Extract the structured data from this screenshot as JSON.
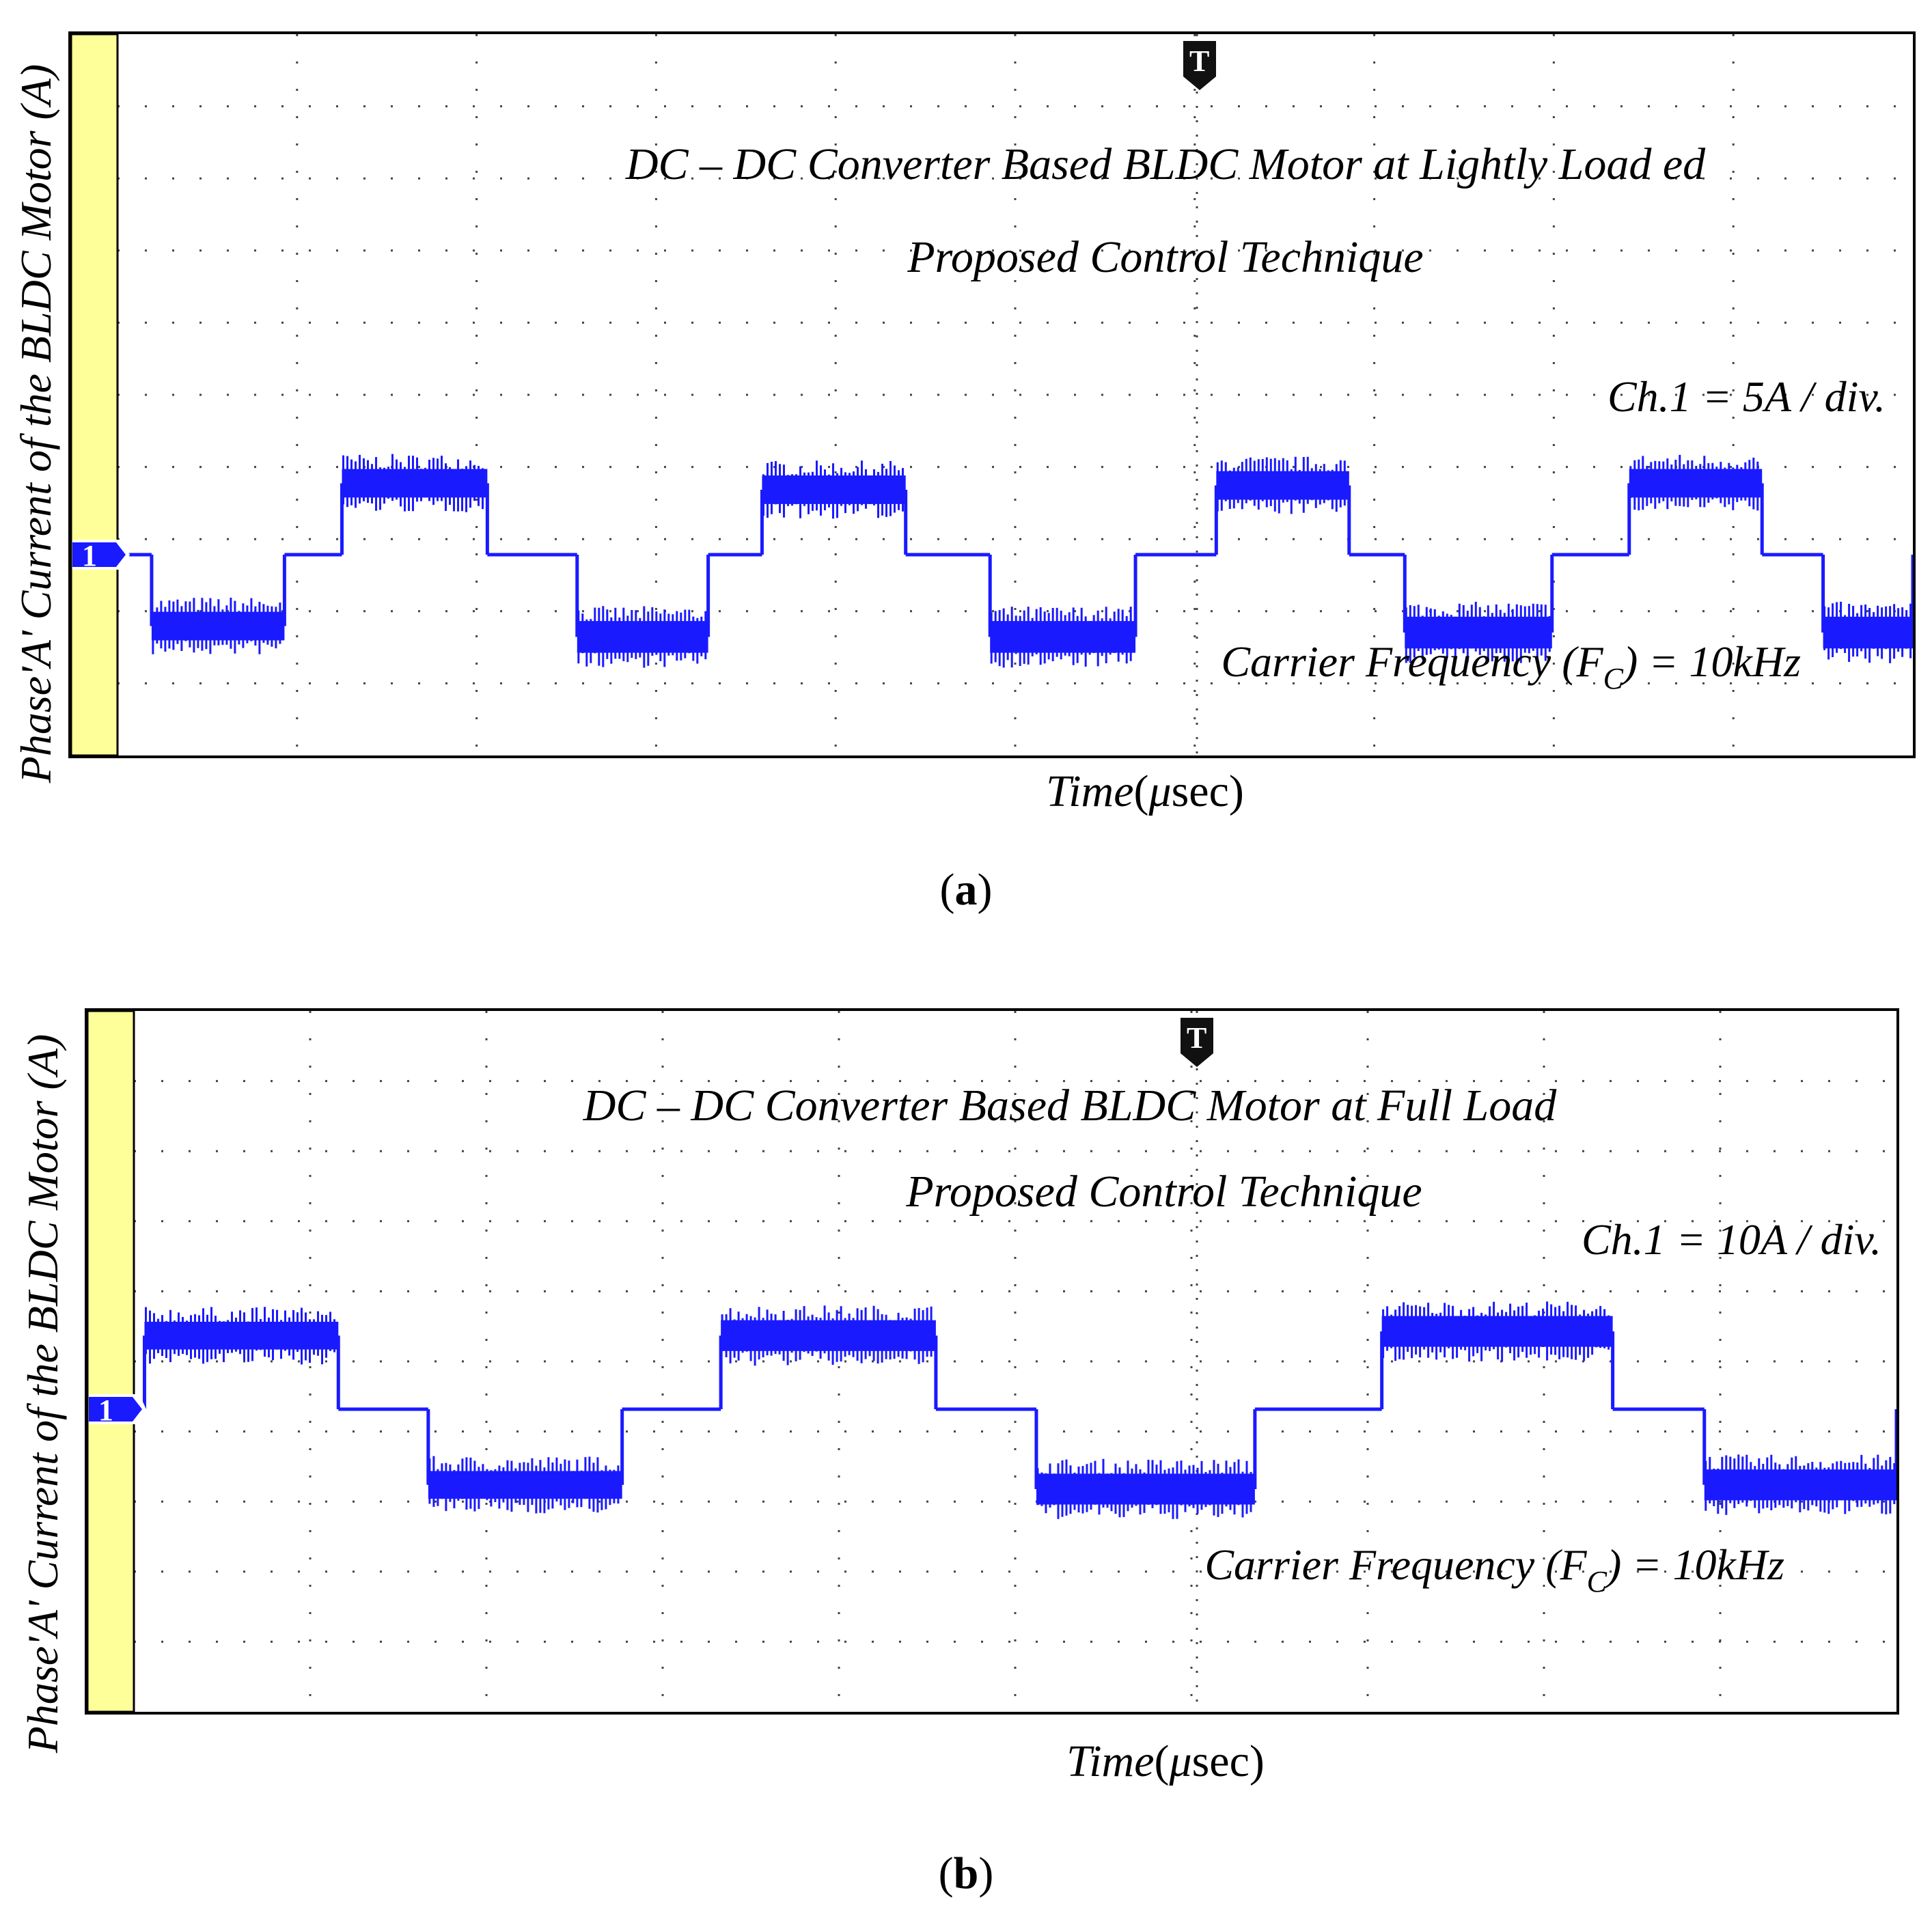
{
  "figure": {
    "panels": [
      {
        "caption_letter": "a",
        "ylabel": "Phase'A' Current of the BLDC Motor (A)",
        "xlabel_main": "Time",
        "xlabel_mu": "μ",
        "xlabel_unit": "sec",
        "title_line1": "DC – DC Converter Based BLDC Motor at Lightly Load ed",
        "title_line2": "Proposed Control Technique",
        "scale_label": "Ch.1 = 5A / div.",
        "carrier_prefix": "Carrier Frequency (F",
        "carrier_sub": "C",
        "carrier_suffix": ") = 10kHz",
        "channel_marker": "1",
        "trigger_marker": "T"
      },
      {
        "caption_letter": "b",
        "ylabel": "Phase'A' Current of the BLDC Motor (A)",
        "xlabel_main": "Time",
        "xlabel_mu": "μ",
        "xlabel_unit": "sec",
        "title_line1": "DC – DC Converter Based BLDC Motor at Full Load",
        "title_line2": "Proposed Control Technique",
        "scale_label": "Ch.1 = 10A / div.",
        "carrier_prefix": "Carrier Frequency (F",
        "carrier_sub": "C",
        "carrier_suffix": ") = 10kHz",
        "channel_marker": "1",
        "trigger_marker": "T"
      }
    ]
  },
  "colors": {
    "trace": "#1a1aff",
    "channel_strip": "#ffff99",
    "marker": "#1a1aff",
    "grid": "#444444"
  },
  "chart_data": [
    {
      "type": "line",
      "xlabel": "Time (μsec)",
      "ylabel": "Phase'A' Current of the BLDC Motor (A)",
      "xlim": [
        0,
        10
      ],
      "ylim": [
        -3.5,
        1.5
      ],
      "x_unit": "div",
      "y_unit": "div",
      "grid": true,
      "segments": [
        {
          "x0": 0.0,
          "x1": 0.19,
          "level": 0,
          "ripple": 0
        },
        {
          "x0": 0.19,
          "x1": 0.93,
          "level": -0.33,
          "ripple": 0.18
        },
        {
          "x0": 0.93,
          "x1": 1.25,
          "level": 0,
          "ripple": 0
        },
        {
          "x0": 1.25,
          "x1": 2.06,
          "level": 0.33,
          "ripple": 0.18
        },
        {
          "x0": 2.06,
          "x1": 2.56,
          "level": 0,
          "ripple": 0
        },
        {
          "x0": 2.56,
          "x1": 3.29,
          "level": -0.38,
          "ripple": 0.2
        },
        {
          "x0": 3.29,
          "x1": 3.59,
          "level": 0,
          "ripple": 0
        },
        {
          "x0": 3.59,
          "x1": 4.39,
          "level": 0.3,
          "ripple": 0.18
        },
        {
          "x0": 4.39,
          "x1": 4.86,
          "level": 0,
          "ripple": 0
        },
        {
          "x0": 4.86,
          "x1": 5.67,
          "level": -0.38,
          "ripple": 0.2
        },
        {
          "x0": 5.67,
          "x1": 6.12,
          "level": 0,
          "ripple": 0
        },
        {
          "x0": 6.12,
          "x1": 6.86,
          "level": 0.32,
          "ripple": 0.18
        },
        {
          "x0": 6.86,
          "x1": 7.17,
          "level": 0,
          "ripple": 0
        },
        {
          "x0": 7.17,
          "x1": 7.99,
          "level": -0.36,
          "ripple": 0.2
        },
        {
          "x0": 7.99,
          "x1": 8.42,
          "level": 0,
          "ripple": 0
        },
        {
          "x0": 8.42,
          "x1": 9.16,
          "level": 0.33,
          "ripple": 0.18
        },
        {
          "x0": 9.16,
          "x1": 9.5,
          "level": 0,
          "ripple": 0
        },
        {
          "x0": 9.5,
          "x1": 10.0,
          "level": -0.36,
          "ripple": 0.2
        }
      ]
    },
    {
      "type": "line",
      "xlabel": "Time (μsec)",
      "ylabel": "Phase'A' Current of the BLDC Motor (A)",
      "xlim": [
        0,
        10
      ],
      "ylim": [
        -3,
        2
      ],
      "x_unit": "div",
      "y_unit": "div",
      "grid": true,
      "segments": [
        {
          "x0": 0.0,
          "x1": 0.06,
          "level": 0,
          "ripple": 0
        },
        {
          "x0": 0.06,
          "x1": 1.16,
          "level": 0.35,
          "ripple": 0.18
        },
        {
          "x0": 1.16,
          "x1": 1.67,
          "level": 0,
          "ripple": 0
        },
        {
          "x0": 1.67,
          "x1": 2.77,
          "level": -0.36,
          "ripple": 0.18
        },
        {
          "x0": 2.77,
          "x1": 3.33,
          "level": 0,
          "ripple": 0
        },
        {
          "x0": 3.33,
          "x1": 4.55,
          "level": 0.35,
          "ripple": 0.2
        },
        {
          "x0": 4.55,
          "x1": 5.12,
          "level": 0,
          "ripple": 0
        },
        {
          "x0": 5.12,
          "x1": 6.36,
          "level": -0.38,
          "ripple": 0.2
        },
        {
          "x0": 6.36,
          "x1": 7.08,
          "level": 0,
          "ripple": 0
        },
        {
          "x0": 7.08,
          "x1": 8.39,
          "level": 0.37,
          "ripple": 0.2
        },
        {
          "x0": 8.39,
          "x1": 8.91,
          "level": 0,
          "ripple": 0
        },
        {
          "x0": 8.91,
          "x1": 10.0,
          "level": -0.36,
          "ripple": 0.2
        }
      ]
    }
  ]
}
